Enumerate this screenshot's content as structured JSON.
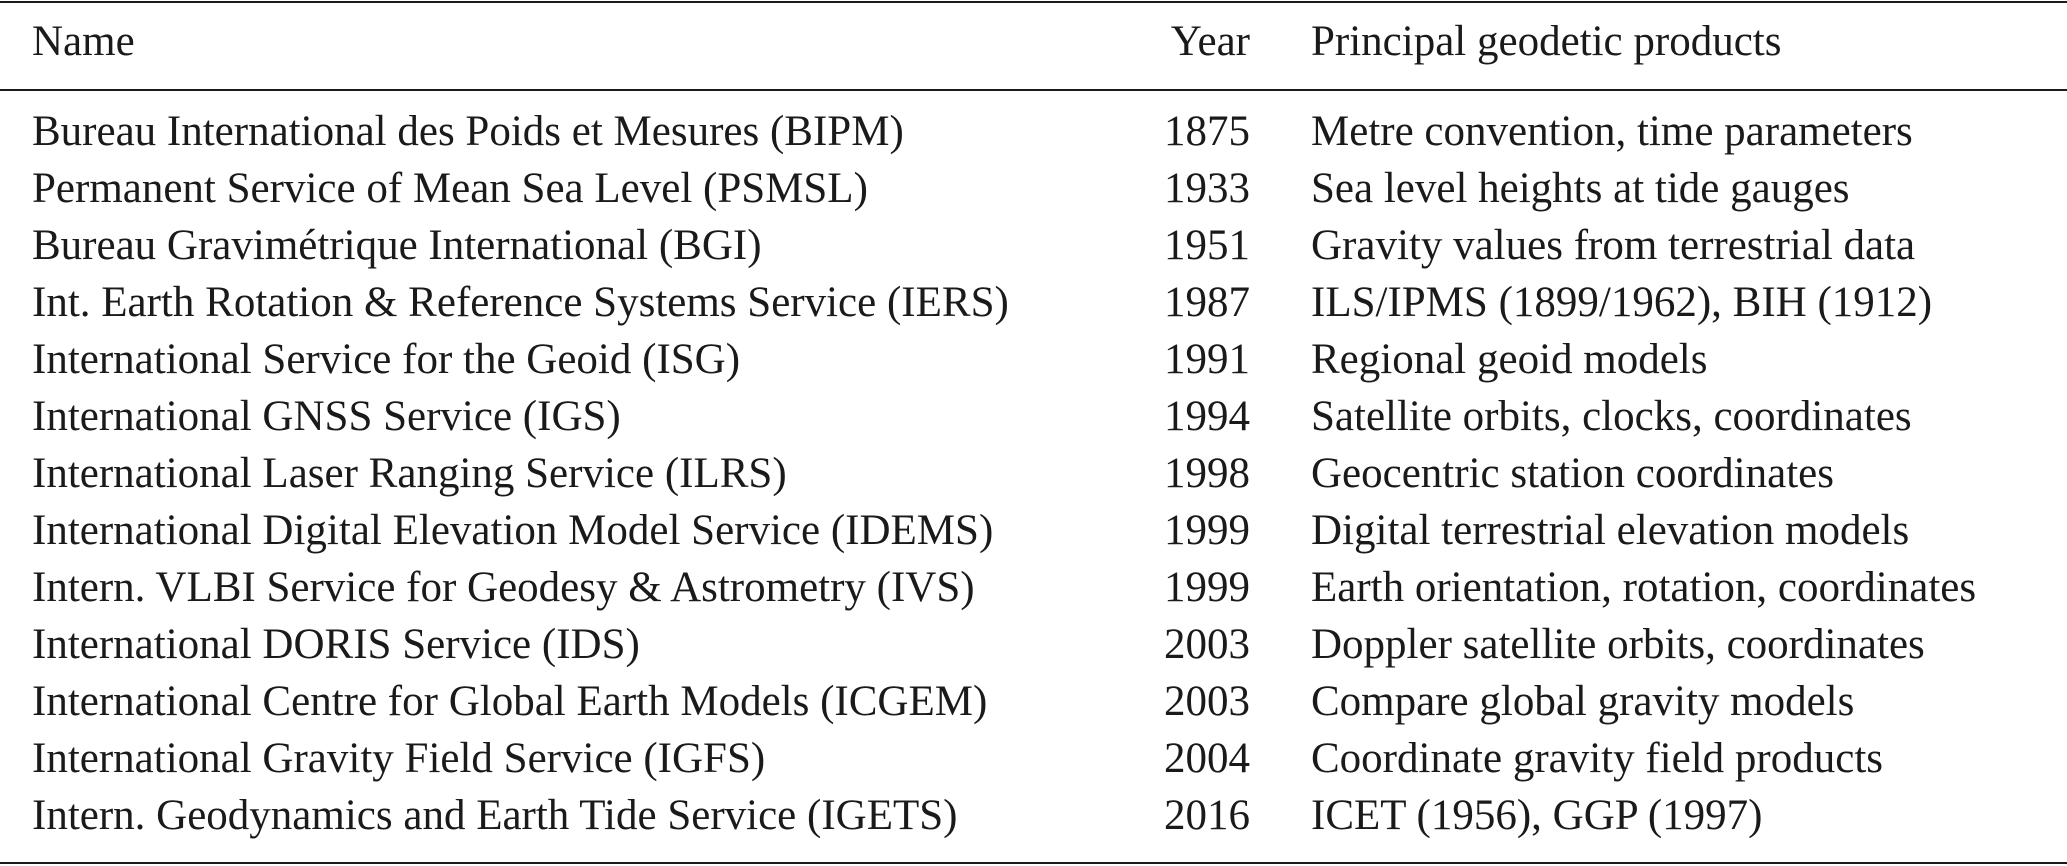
{
  "table": {
    "headers": {
      "name": "Name",
      "year": "Year",
      "products": "Principal geodetic products"
    },
    "rows": [
      {
        "name": "Bureau International des Poids et Mesures (BIPM)",
        "year": "1875",
        "products": "Metre convention, time parameters"
      },
      {
        "name": "Permanent Service of Mean Sea Level (PSMSL)",
        "year": "1933",
        "products": "Sea level heights at tide gauges"
      },
      {
        "name": "Bureau Gravimétrique International (BGI)",
        "year": "1951",
        "products": "Gravity values from terrestrial data"
      },
      {
        "name": "Int. Earth Rotation & Reference Systems Service (IERS)",
        "year": "1987",
        "products": "ILS/IPMS (1899/1962), BIH (1912)"
      },
      {
        "name": "International Service for the Geoid (ISG)",
        "year": "1991",
        "products": "Regional geoid models"
      },
      {
        "name": "International GNSS Service (IGS)",
        "year": "1994",
        "products": "Satellite orbits, clocks, coordinates"
      },
      {
        "name": "International Laser Ranging Service (ILRS)",
        "year": "1998",
        "products": "Geocentric station coordinates"
      },
      {
        "name": "International Digital Elevation Model Service (IDEMS)",
        "year": "1999",
        "products": "Digital terrestrial elevation models"
      },
      {
        "name": "Intern. VLBI Service for Geodesy & Astrometry (IVS)",
        "year": "1999",
        "products": "Earth orientation, rotation, coordinates"
      },
      {
        "name": "International DORIS Service (IDS)",
        "year": "2003",
        "products": "Doppler satellite orbits, coordinates"
      },
      {
        "name": "International Centre for Global Earth Models (ICGEM)",
        "year": "2003",
        "products": "Compare global gravity models"
      },
      {
        "name": "International Gravity Field Service (IGFS)",
        "year": "2004",
        "products": "Coordinate gravity field products"
      },
      {
        "name": "Intern. Geodynamics and Earth Tide Service (IGETS)",
        "year": "2016",
        "products": "ICET (1956), GGP (1997)"
      }
    ]
  }
}
